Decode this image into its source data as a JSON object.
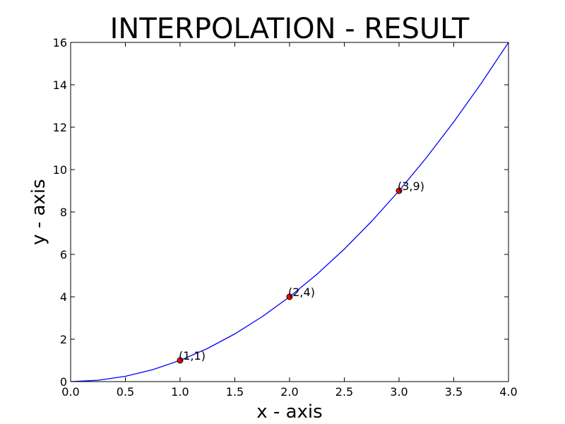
{
  "chart_data": {
    "type": "line",
    "title": "INTERPOLATION - RESULT",
    "xlabel": "x - axis",
    "ylabel": "y - axis",
    "xlim": [
      0.0,
      4.0
    ],
    "ylim": [
      0,
      16
    ],
    "x_ticks": [
      "0.0",
      "0.5",
      "1.0",
      "1.5",
      "2.0",
      "2.5",
      "3.0",
      "3.5",
      "4.0"
    ],
    "y_ticks": [
      "0",
      "2",
      "4",
      "6",
      "8",
      "10",
      "12",
      "14",
      "16"
    ],
    "grid": false,
    "series": [
      {
        "kind": "line",
        "color": "#0000ff",
        "x": [
          0.0,
          0.25,
          0.5,
          0.75,
          1.0,
          1.25,
          1.5,
          1.75,
          2.0,
          2.25,
          2.5,
          2.75,
          3.0,
          3.25,
          3.5,
          3.75,
          4.0
        ],
        "y": [
          0.0,
          0.0625,
          0.25,
          0.5625,
          1.0,
          1.5625,
          2.25,
          3.0625,
          4.0,
          5.0625,
          6.25,
          7.5625,
          9.0,
          10.5625,
          12.25,
          14.0625,
          16.0
        ]
      },
      {
        "kind": "scatter",
        "color": "#ff0000",
        "points": [
          {
            "x": 1,
            "y": 1,
            "label": "(1,1)"
          },
          {
            "x": 2,
            "y": 4,
            "label": "(2,4)"
          },
          {
            "x": 3,
            "y": 9,
            "label": "(3,9)"
          }
        ]
      }
    ]
  }
}
